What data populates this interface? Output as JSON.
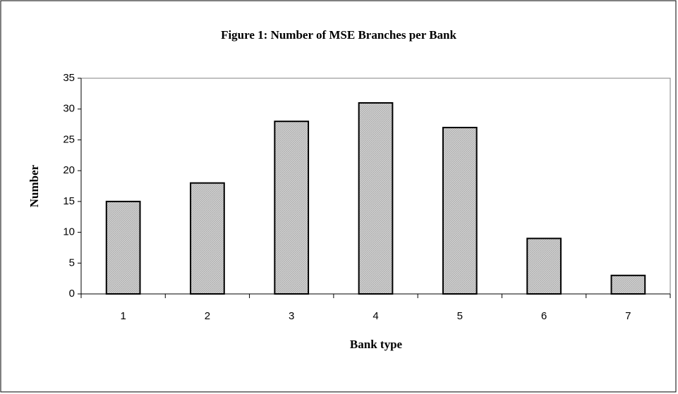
{
  "chart_data": {
    "type": "bar",
    "title": "Figure 1: Number of MSE Branches per Bank",
    "x_label": "Bank type",
    "y_label": "Number",
    "categories": [
      "1",
      "2",
      "3",
      "4",
      "5",
      "6",
      "7"
    ],
    "values": [
      15,
      18,
      28,
      31,
      27,
      9,
      3
    ],
    "color": "#c8c8c8",
    "ylim": [
      0,
      35
    ],
    "yticks": [
      0,
      5,
      10,
      15,
      20,
      25,
      30,
      35
    ],
    "grid": false
  }
}
